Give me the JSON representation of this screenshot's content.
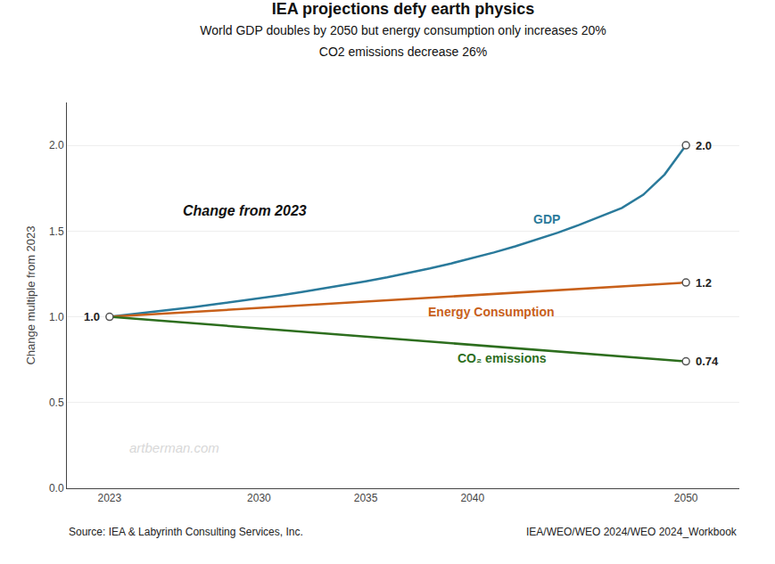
{
  "chart_data": {
    "type": "line",
    "title": "IEA projections defy earth physics",
    "subtitle": [
      "World GDP doubles by 2050 but energy consumption only increases 20%",
      "CO2 emissions decrease 26%"
    ],
    "ylabel": "Change multiple from 2023",
    "annotation": "Change from 2023",
    "watermark": "artberman.com",
    "source": [
      "Source: IEA & Labyrinth Consulting Services, Inc.",
      "IEA/WEO/WEO 2024/WEO 2024_Workbook"
    ],
    "series": [
      {
        "name": "GDP",
        "color": "#2a7a9b",
        "x": [
          2023,
          2024,
          2025,
          2026,
          2027,
          2028,
          2029,
          2030,
          2031,
          2032,
          2033,
          2034,
          2035,
          2036,
          2037,
          2038,
          2039,
          2040,
          2041,
          2042,
          2043,
          2044,
          2045,
          2046,
          2047,
          2048,
          2049,
          2050
        ],
        "values": [
          1.0,
          1.014,
          1.028,
          1.043,
          1.058,
          1.074,
          1.09,
          1.107,
          1.125,
          1.144,
          1.164,
          1.185,
          1.207,
          1.23,
          1.255,
          1.282,
          1.311,
          1.342,
          1.375,
          1.411,
          1.45,
          1.491,
          1.536,
          1.584,
          1.635,
          1.712,
          1.83,
          2.0
        ],
        "value_labels": [
          "1.0",
          null,
          null,
          null,
          null,
          null,
          null,
          null,
          null,
          null,
          null,
          null,
          null,
          null,
          null,
          null,
          null,
          null,
          null,
          null,
          null,
          null,
          null,
          null,
          null,
          null,
          null,
          "2.0"
        ]
      },
      {
        "name": "Energy Consumption",
        "color": "#c8601a",
        "x": [
          2023,
          2050
        ],
        "values": [
          1.0,
          1.2
        ],
        "value_labels": [
          null,
          "1.2"
        ]
      },
      {
        "name": "CO₂ emissions",
        "color": "#2d6e1e",
        "x": [
          2023,
          2050
        ],
        "values": [
          1.0,
          0.74
        ],
        "value_labels": [
          null,
          "0.74"
        ]
      }
    ],
    "xlim": [
      2021.0,
      2052.5
    ],
    "ylim": [
      0,
      2.25
    ],
    "xticks": [
      2023,
      2030,
      2035,
      2040,
      2050
    ],
    "yticks": [
      {
        "value": 0,
        "label": "0.0"
      },
      0.5,
      {
        "value": 1.0,
        "label": "1.0"
      },
      1.5,
      {
        "value": 2.0,
        "label": "2.0"
      }
    ],
    "grid": "y"
  }
}
